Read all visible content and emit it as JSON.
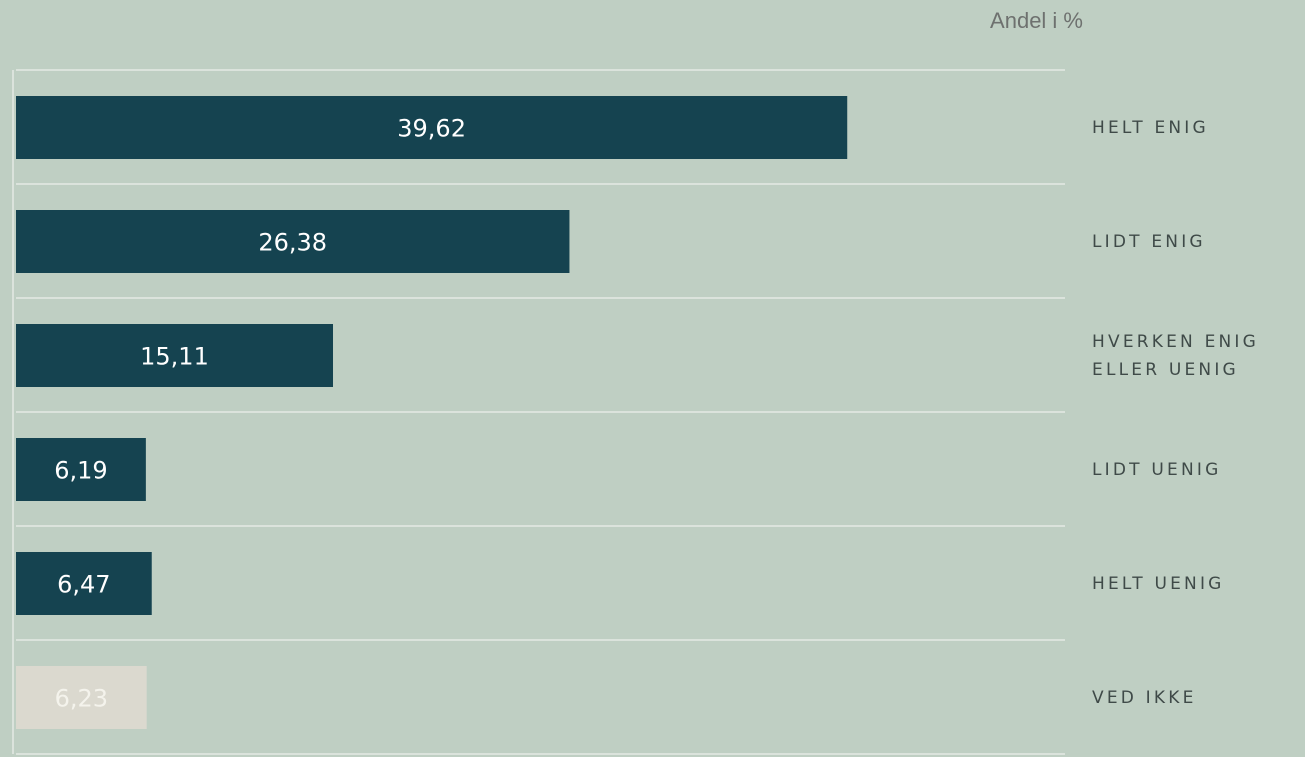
{
  "chart_data": {
    "type": "bar",
    "orientation": "horizontal",
    "title": "Andel i %",
    "categories": [
      "HELT ENIG",
      "LIDT ENIG",
      "HVERKEN ENIG ELLER UENIG",
      "LIDT UENIG",
      "HELT UENIG",
      "VED IKKE"
    ],
    "values": [
      39.62,
      26.38,
      15.11,
      6.19,
      6.47,
      6.23
    ],
    "value_labels": [
      "39,62",
      "26,38",
      "15,11",
      "6,19",
      "6,47",
      "6,23"
    ],
    "colors": [
      "#154350",
      "#154350",
      "#154350",
      "#154350",
      "#154350",
      "#dbd9cf"
    ],
    "xlim": [
      0,
      50
    ]
  }
}
